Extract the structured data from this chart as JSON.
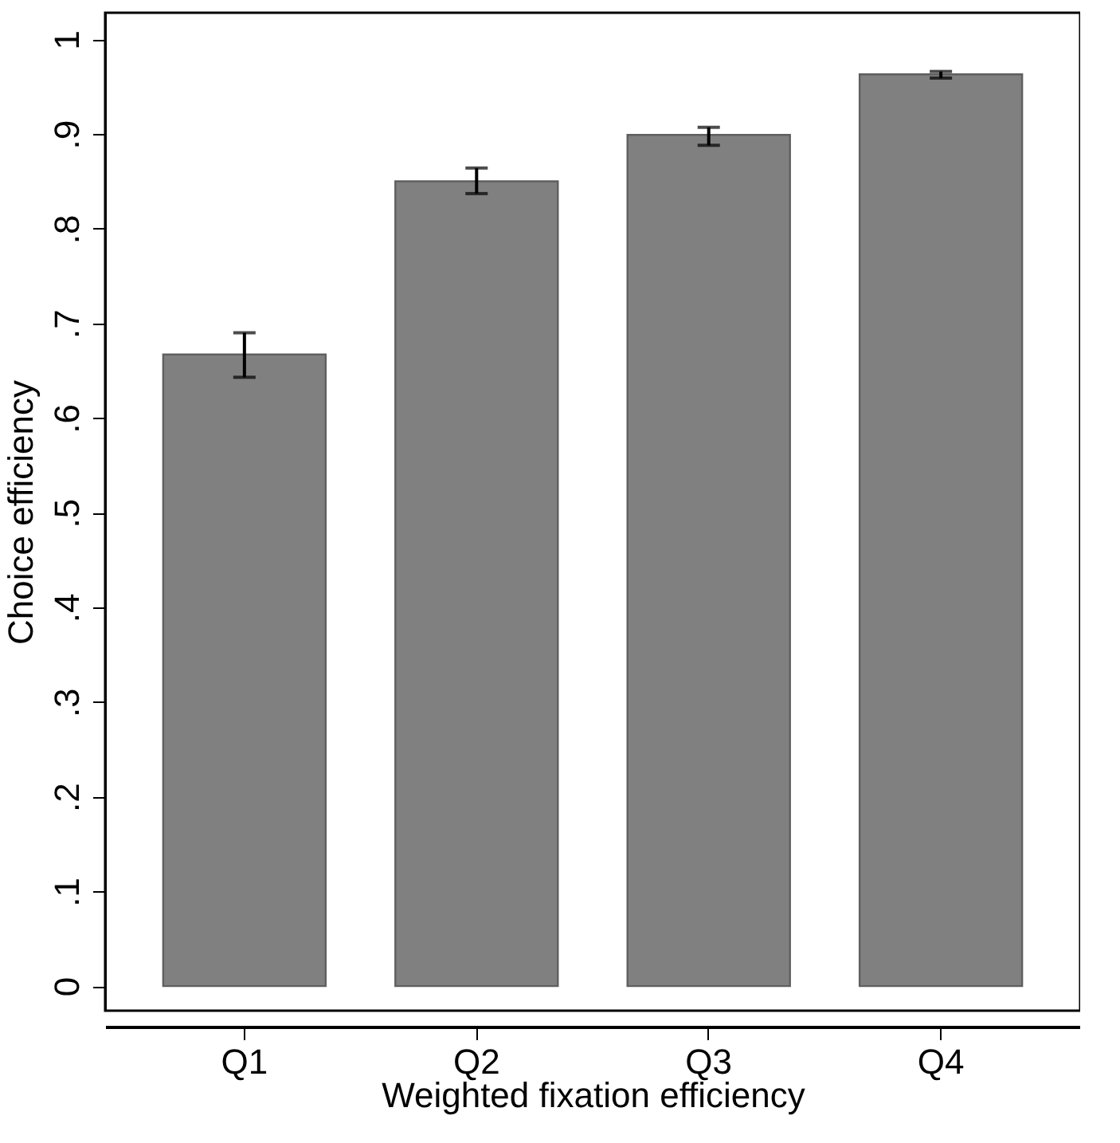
{
  "chart_data": {
    "type": "bar",
    "xlabel": "Weighted fixation efficiency",
    "ylabel": "Choice efficiency",
    "categories": [
      "Q1",
      "Q2",
      "Q3",
      "Q4"
    ],
    "values": [
      0.667,
      0.85,
      0.899,
      0.963
    ],
    "errors": [
      [
        0.643,
        0.69
      ],
      [
        0.837,
        0.864
      ],
      [
        0.888,
        0.907
      ],
      [
        0.959,
        0.966
      ]
    ],
    "color": "#808080",
    "ylim": [
      -0.026,
      1.028
    ],
    "yticks": [
      {
        "value": 0,
        "label": "0"
      },
      {
        "value": 0.1,
        "label": ".1"
      },
      {
        "value": 0.2,
        "label": ".2"
      },
      {
        "value": 0.3,
        "label": ".3"
      },
      {
        "value": 0.4,
        "label": ".4"
      },
      {
        "value": 0.5,
        "label": ".5"
      },
      {
        "value": 0.6,
        "label": ".6"
      },
      {
        "value": 0.7,
        "label": ".7"
      },
      {
        "value": 0.8,
        "label": ".8"
      },
      {
        "value": 0.9,
        "label": ".9"
      },
      {
        "value": 1,
        "label": "1"
      }
    ],
    "grid": false
  }
}
